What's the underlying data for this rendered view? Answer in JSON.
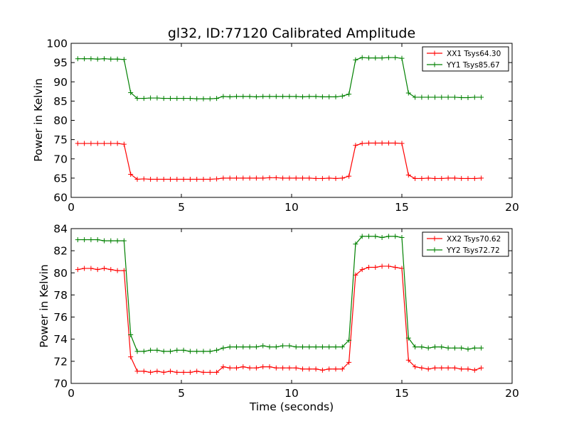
{
  "chart_data": [
    {
      "type": "line",
      "title": "gl32, ID:77120 Calibrated Amplitude",
      "xlabel": "",
      "ylabel": "Power in Kelvin",
      "xlim": [
        0,
        20
      ],
      "ylim": [
        60,
        100
      ],
      "xticks": [
        0,
        5,
        10,
        15,
        20
      ],
      "yticks": [
        60,
        65,
        70,
        75,
        80,
        85,
        90,
        95,
        100
      ],
      "grid": false,
      "legend_position": "top-right",
      "x": [
        0.3,
        0.6,
        0.9,
        1.2,
        1.5,
        1.8,
        2.1,
        2.4,
        2.7,
        3.0,
        3.3,
        3.6,
        3.9,
        4.2,
        4.5,
        4.8,
        5.1,
        5.4,
        5.7,
        6.0,
        6.3,
        6.6,
        6.9,
        7.2,
        7.5,
        7.8,
        8.1,
        8.4,
        8.7,
        9.0,
        9.3,
        9.6,
        9.9,
        10.2,
        10.5,
        10.8,
        11.1,
        11.4,
        11.7,
        12.0,
        12.3,
        12.6,
        12.9,
        13.2,
        13.5,
        13.8,
        14.1,
        14.4,
        14.7,
        15.0,
        15.3,
        15.6,
        15.9,
        16.2,
        16.5,
        16.8,
        17.1,
        17.4,
        17.7,
        18.0,
        18.3,
        18.6
      ],
      "series": [
        {
          "name": "XX1 Tsys64.30",
          "color": "#ff0000",
          "values": [
            74.0,
            74.0,
            74.0,
            74.0,
            74.0,
            74.0,
            74.0,
            73.8,
            66.0,
            64.7,
            64.8,
            64.7,
            64.7,
            64.7,
            64.7,
            64.7,
            64.7,
            64.7,
            64.7,
            64.7,
            64.7,
            64.8,
            65.0,
            65.0,
            65.0,
            65.0,
            65.0,
            65.0,
            65.0,
            65.1,
            65.1,
            65.0,
            65.0,
            65.0,
            65.0,
            65.0,
            64.9,
            64.9,
            65.0,
            64.9,
            65.0,
            65.5,
            73.5,
            74.0,
            74.1,
            74.1,
            74.1,
            74.1,
            74.1,
            74.0,
            65.8,
            64.9,
            64.9,
            65.0,
            64.9,
            64.9,
            65.0,
            65.0,
            64.9,
            64.9,
            64.9,
            65.0
          ]
        },
        {
          "name": "YY1 Tsys85.67",
          "color": "#008000",
          "values": [
            96.0,
            96.0,
            96.0,
            95.9,
            96.0,
            95.9,
            95.9,
            95.8,
            87.2,
            85.7,
            85.7,
            85.8,
            85.8,
            85.7,
            85.7,
            85.7,
            85.7,
            85.7,
            85.6,
            85.6,
            85.6,
            85.7,
            86.2,
            86.1,
            86.2,
            86.2,
            86.2,
            86.1,
            86.2,
            86.2,
            86.2,
            86.2,
            86.2,
            86.2,
            86.1,
            86.2,
            86.2,
            86.1,
            86.1,
            86.1,
            86.3,
            86.8,
            95.7,
            96.3,
            96.2,
            96.2,
            96.2,
            96.3,
            96.3,
            96.1,
            87.1,
            86.0,
            86.0,
            86.0,
            86.0,
            86.0,
            86.0,
            86.0,
            85.9,
            85.9,
            86.0,
            86.0
          ]
        }
      ]
    },
    {
      "type": "line",
      "title": "",
      "xlabel": "Time (seconds)",
      "ylabel": "Power in Kelvin",
      "xlim": [
        0,
        20
      ],
      "ylim": [
        70,
        84
      ],
      "xticks": [
        0,
        5,
        10,
        15,
        20
      ],
      "yticks": [
        70,
        72,
        74,
        76,
        78,
        80,
        82,
        84
      ],
      "grid": false,
      "legend_position": "top-right",
      "x": [
        0.3,
        0.6,
        0.9,
        1.2,
        1.5,
        1.8,
        2.1,
        2.4,
        2.7,
        3.0,
        3.3,
        3.6,
        3.9,
        4.2,
        4.5,
        4.8,
        5.1,
        5.4,
        5.7,
        6.0,
        6.3,
        6.6,
        6.9,
        7.2,
        7.5,
        7.8,
        8.1,
        8.4,
        8.7,
        9.0,
        9.3,
        9.6,
        9.9,
        10.2,
        10.5,
        10.8,
        11.1,
        11.4,
        11.7,
        12.0,
        12.3,
        12.6,
        12.9,
        13.2,
        13.5,
        13.8,
        14.1,
        14.4,
        14.7,
        15.0,
        15.3,
        15.6,
        15.9,
        16.2,
        16.5,
        16.8,
        17.1,
        17.4,
        17.7,
        18.0,
        18.3,
        18.6
      ],
      "series": [
        {
          "name": "XX2 Tsys70.62",
          "color": "#ff0000",
          "values": [
            80.3,
            80.4,
            80.4,
            80.3,
            80.4,
            80.3,
            80.2,
            80.2,
            72.4,
            71.1,
            71.1,
            71.0,
            71.1,
            71.0,
            71.1,
            71.0,
            71.0,
            71.0,
            71.1,
            71.0,
            71.0,
            71.0,
            71.5,
            71.4,
            71.4,
            71.5,
            71.4,
            71.4,
            71.5,
            71.5,
            71.4,
            71.4,
            71.4,
            71.4,
            71.3,
            71.3,
            71.3,
            71.2,
            71.3,
            71.3,
            71.3,
            71.9,
            79.8,
            80.3,
            80.5,
            80.5,
            80.6,
            80.6,
            80.5,
            80.4,
            72.1,
            71.5,
            71.4,
            71.3,
            71.4,
            71.4,
            71.4,
            71.4,
            71.3,
            71.3,
            71.2,
            71.4
          ]
        },
        {
          "name": "YY2 Tsys72.72",
          "color": "#008000",
          "values": [
            83.0,
            83.0,
            83.0,
            83.0,
            82.9,
            82.9,
            82.9,
            82.9,
            74.4,
            72.9,
            72.9,
            73.0,
            73.0,
            72.9,
            72.9,
            73.0,
            73.0,
            72.9,
            72.9,
            72.9,
            72.9,
            73.0,
            73.2,
            73.3,
            73.3,
            73.3,
            73.3,
            73.3,
            73.4,
            73.3,
            73.3,
            73.4,
            73.4,
            73.3,
            73.3,
            73.3,
            73.3,
            73.3,
            73.3,
            73.3,
            73.3,
            73.9,
            82.6,
            83.3,
            83.3,
            83.3,
            83.2,
            83.3,
            83.3,
            83.2,
            74.1,
            73.3,
            73.3,
            73.2,
            73.3,
            73.3,
            73.2,
            73.2,
            73.2,
            73.1,
            73.2,
            73.2
          ]
        }
      ]
    }
  ]
}
